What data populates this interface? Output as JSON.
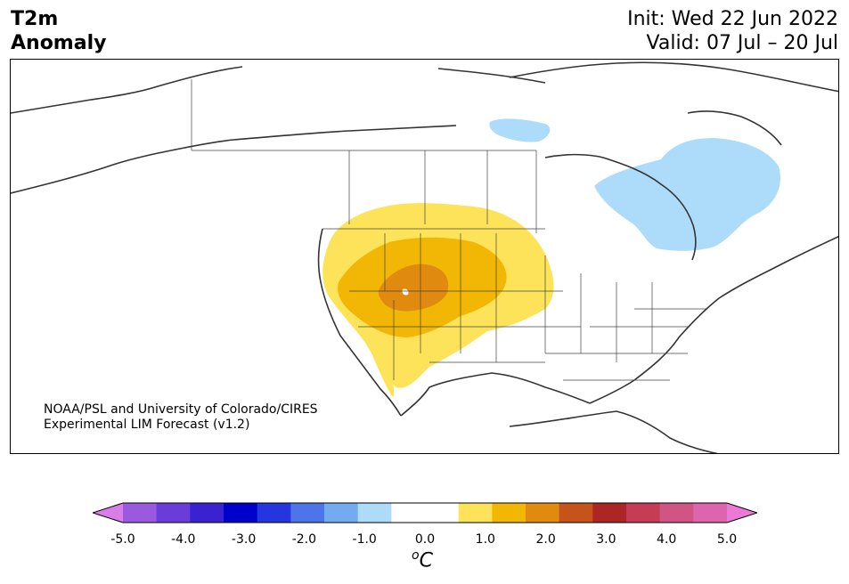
{
  "header": {
    "title_line1": "T2m",
    "title_line2": "Anomaly",
    "init": "Init: Wed 22 Jun 2022",
    "valid": "Valid: 07 Jul – 20 Jul"
  },
  "map": {
    "credit_line1": "NOAA/PSL and University of Colorado/CIRES",
    "credit_line2": "Experimental LIM Forecast (v1.2)"
  },
  "colorbar": {
    "colors": [
      "#d97ee8",
      "#9b59e0",
      "#6a3ddb",
      "#3b22d0",
      "#0000cd",
      "#2535df",
      "#4d74e8",
      "#73aaf0",
      "#acdcfa",
      "#ffffff",
      "#ffffff",
      "#fde35a",
      "#f2b705",
      "#e08a0f",
      "#c4541a",
      "#ad2626",
      "#c43c55",
      "#d05585",
      "#dc65ad",
      "#ea7ad6"
    ],
    "tick_labels": [
      "-5.0",
      "-4.0",
      "-3.0",
      "-2.0",
      "-1.0",
      "0.0",
      "1.0",
      "2.0",
      "3.0",
      "4.0",
      "5.0"
    ],
    "unit_sup": "o",
    "unit_letter": "C"
  }
}
